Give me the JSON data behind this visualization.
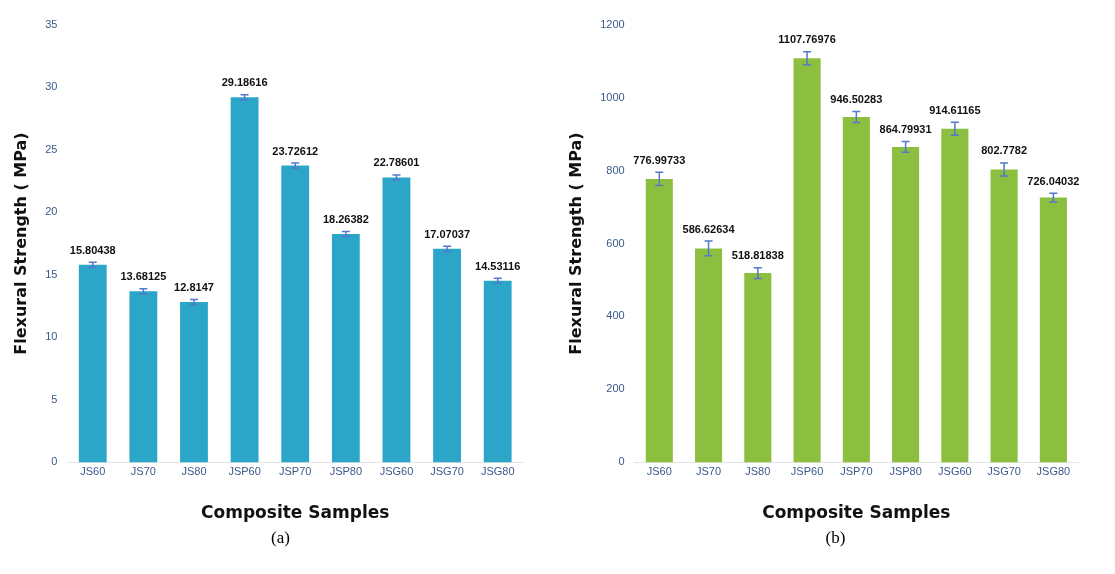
{
  "chart_data": [
    {
      "type": "bar",
      "categories": [
        "JS60",
        "JS70",
        "JS80",
        "JSP60",
        "JSP70",
        "JSP80",
        "JSG60",
        "JSG70",
        "JSG80"
      ],
      "values": [
        15.80438,
        13.68125,
        12.8147,
        29.18616,
        23.72612,
        18.26382,
        22.78601,
        17.07037,
        14.53116
      ],
      "errors": [
        0.2,
        0.2,
        0.2,
        0.2,
        0.2,
        0.2,
        0.2,
        0.2,
        0.2
      ],
      "color": "#2ba6c8",
      "ylim": [
        0,
        35
      ],
      "yticks": [
        0,
        5,
        10,
        15,
        20,
        25,
        30,
        35
      ],
      "grid": false,
      "legend": false,
      "data_labels": true,
      "xlabel": "Composite Samples",
      "ylabel": "Flexural Strength ( MPa)",
      "annotations": [
        "(a)"
      ]
    },
    {
      "type": "bar",
      "categories": [
        "JS60",
        "JS70",
        "JS80",
        "JSP60",
        "JSP70",
        "JSP80",
        "JSG60",
        "JSG70",
        "JSG80"
      ],
      "values": [
        776.99733,
        586.62634,
        518.81838,
        1107.76976,
        946.50283,
        864.79931,
        914.61165,
        802.7782,
        726.04032
      ],
      "errors": [
        18,
        20,
        15,
        18,
        15,
        15,
        18,
        18,
        12
      ],
      "color": "#8cbf3f",
      "ylim": [
        0,
        1200
      ],
      "yticks": [
        0,
        200,
        400,
        600,
        800,
        1000,
        1200
      ],
      "grid": false,
      "legend": false,
      "data_labels": true,
      "xlabel": "Composite Samples",
      "ylabel": "Flexural Strength ( MPa)",
      "annotations": [
        "(b)"
      ]
    }
  ]
}
